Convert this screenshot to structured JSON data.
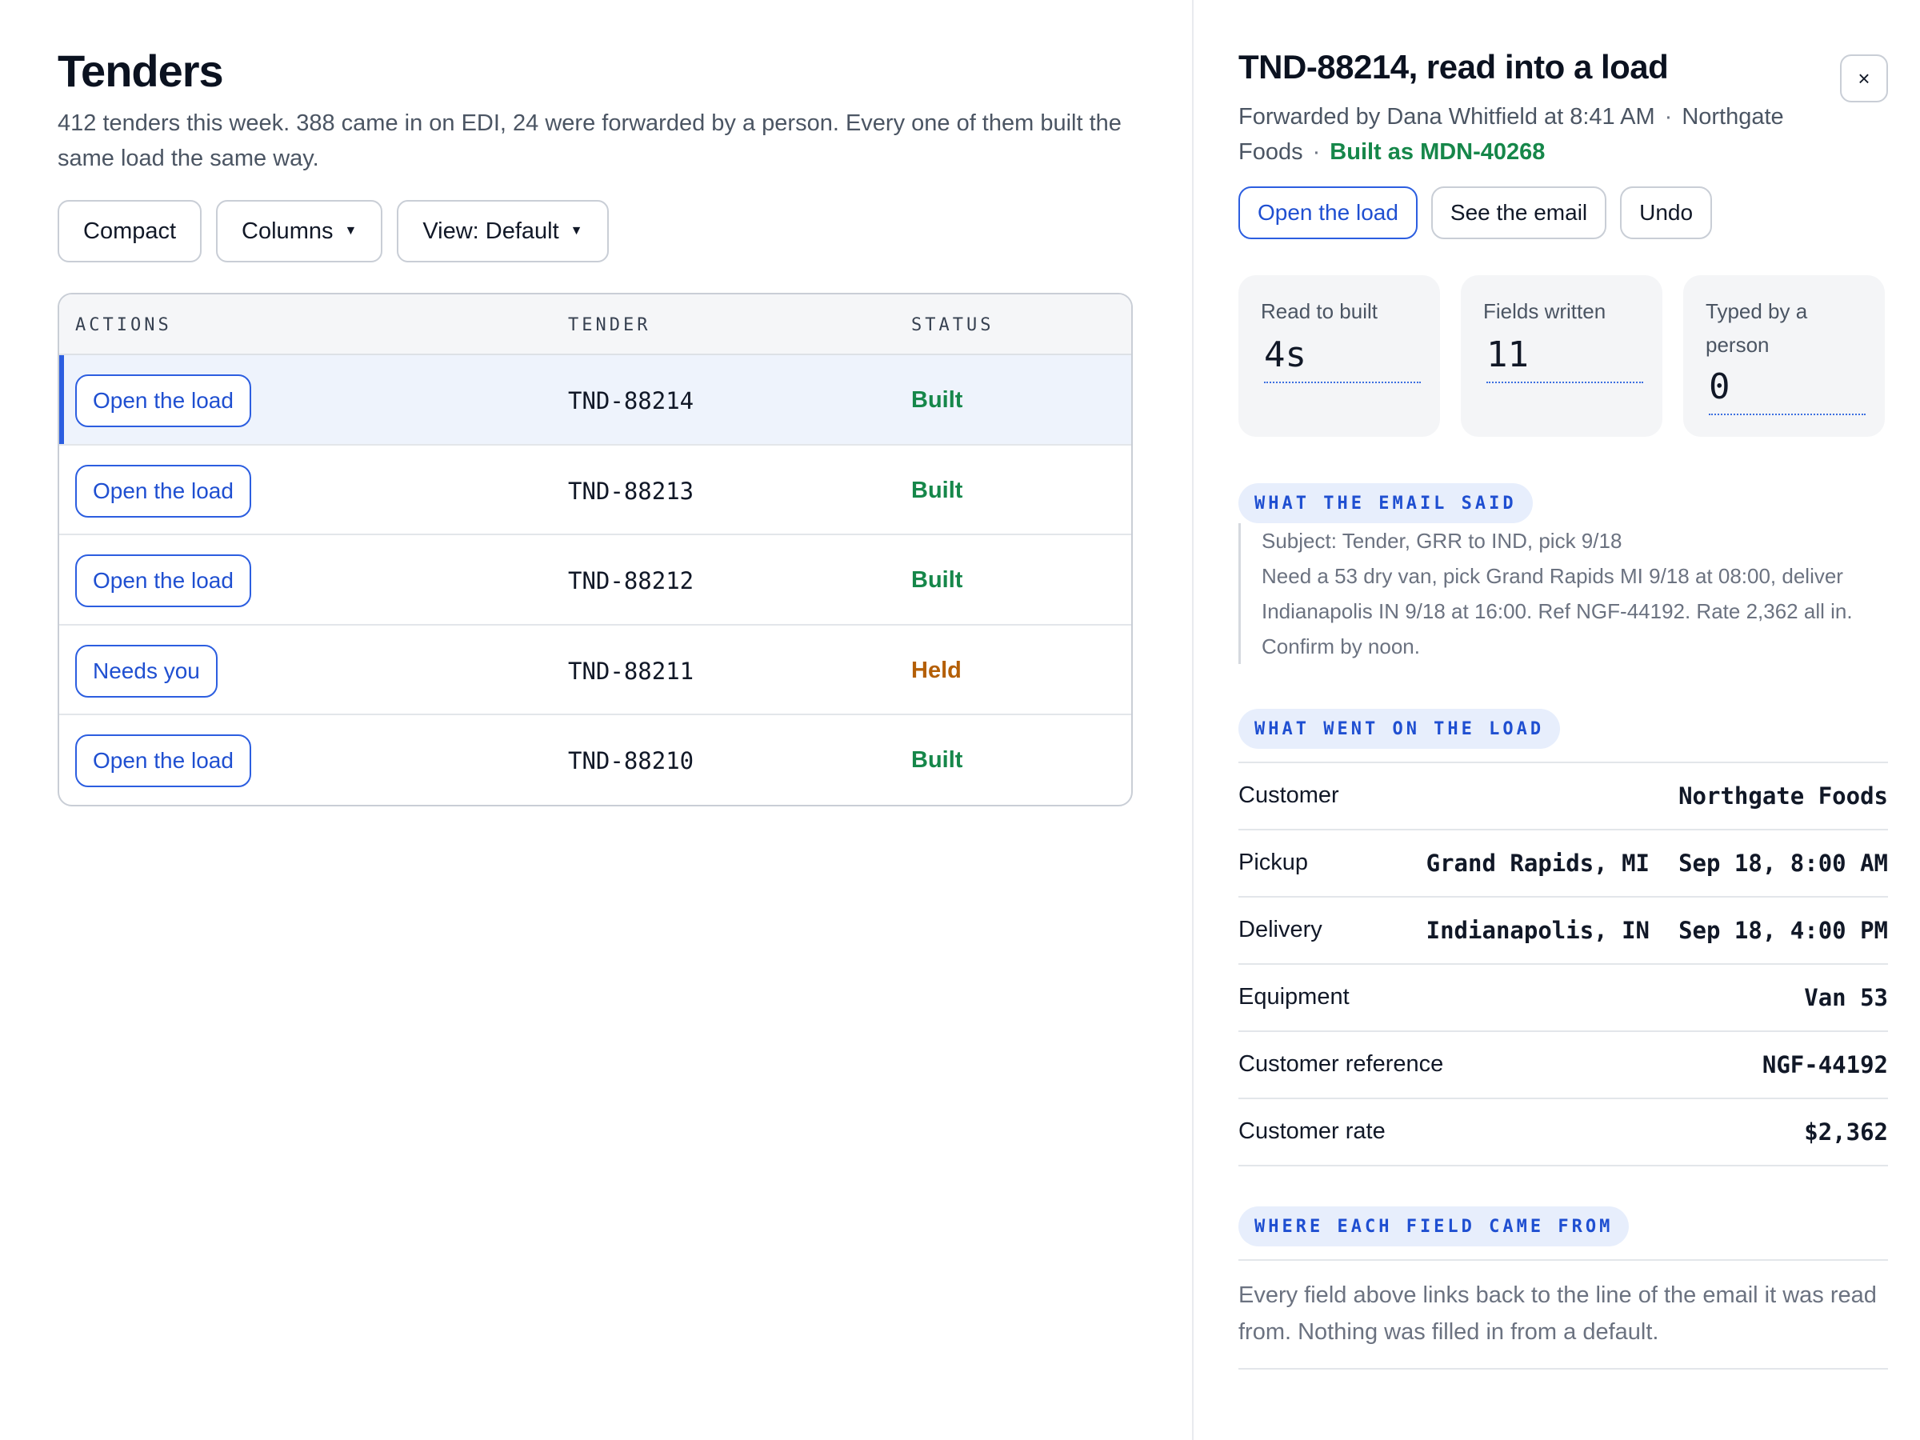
{
  "page": {
    "title": "Tenders",
    "description": "412 tenders this week. 388 came in on EDI, 24 were forwarded by a person. Every one of them built the same load the same way."
  },
  "toolbar": {
    "compact_label": "Compact",
    "columns_label": "Columns",
    "view_label": "View: Default"
  },
  "table": {
    "columns": [
      "ACTIONS",
      "TENDER",
      "STATUS"
    ],
    "rows": [
      {
        "action": "Open the load",
        "tender": "TND-88214",
        "status": "Built",
        "selected": true
      },
      {
        "action": "Open the load",
        "tender": "TND-88213",
        "status": "Built"
      },
      {
        "action": "Open the load",
        "tender": "TND-88212",
        "status": "Built"
      },
      {
        "action": "Needs you",
        "tender": "TND-88211",
        "status": "Held"
      },
      {
        "action": "Open the load",
        "tender": "TND-88210",
        "status": "Built"
      }
    ]
  },
  "detail": {
    "title": "TND-88214, read into a load",
    "close_label": "×",
    "meta": {
      "forwarded": "Forwarded by Dana Whitfield at 8:41 AM",
      "customer": "Northgate Foods",
      "built": "Built as MDN-40268",
      "separator": "·"
    },
    "actions": {
      "open_label": "Open the load",
      "email_label": "See the email",
      "undo_label": "Undo"
    },
    "stats": [
      {
        "label": "Read to built",
        "value": "4s"
      },
      {
        "label": "Fields written",
        "value": "11"
      },
      {
        "label": "Typed by a person",
        "value": "0"
      }
    ],
    "email_section": {
      "tag": "WHAT THE EMAIL SAID",
      "subject": "Subject: Tender, GRR to IND, pick 9/18",
      "body": "Need a 53 dry van, pick Grand Rapids MI 9/18 at 08:00, deliver Indianapolis IN 9/18 at 16:00. Ref NGF-44192. Rate 2,362 all in. Confirm by noon."
    },
    "load_section": {
      "tag": "WHAT WENT ON THE LOAD",
      "fields": [
        {
          "label": "Customer",
          "value": "Northgate Foods"
        },
        {
          "label": "Pickup",
          "place": "Grand Rapids, MI",
          "value": "Sep 18, 8:00 AM"
        },
        {
          "label": "Delivery",
          "place": "Indianapolis, IN",
          "value": "Sep 18, 4:00 PM"
        },
        {
          "label": "Equipment",
          "value": "Van 53"
        },
        {
          "label": "Customer reference",
          "value": "NGF-44192"
        },
        {
          "label": "Customer rate",
          "value": "$2,362"
        }
      ]
    },
    "source_section": {
      "tag": "WHERE EACH FIELD CAME FROM",
      "text": "Every field above links back to the line of the email it was read from. Nothing was filled in from a default."
    }
  },
  "colors": {
    "accent": "#2c5ee0",
    "built": "#16874a",
    "held": "#b45f06",
    "selected_row": "#eef3fc"
  },
  "icons": {
    "dropdown": "caret-down-icon",
    "close": "close-icon"
  }
}
